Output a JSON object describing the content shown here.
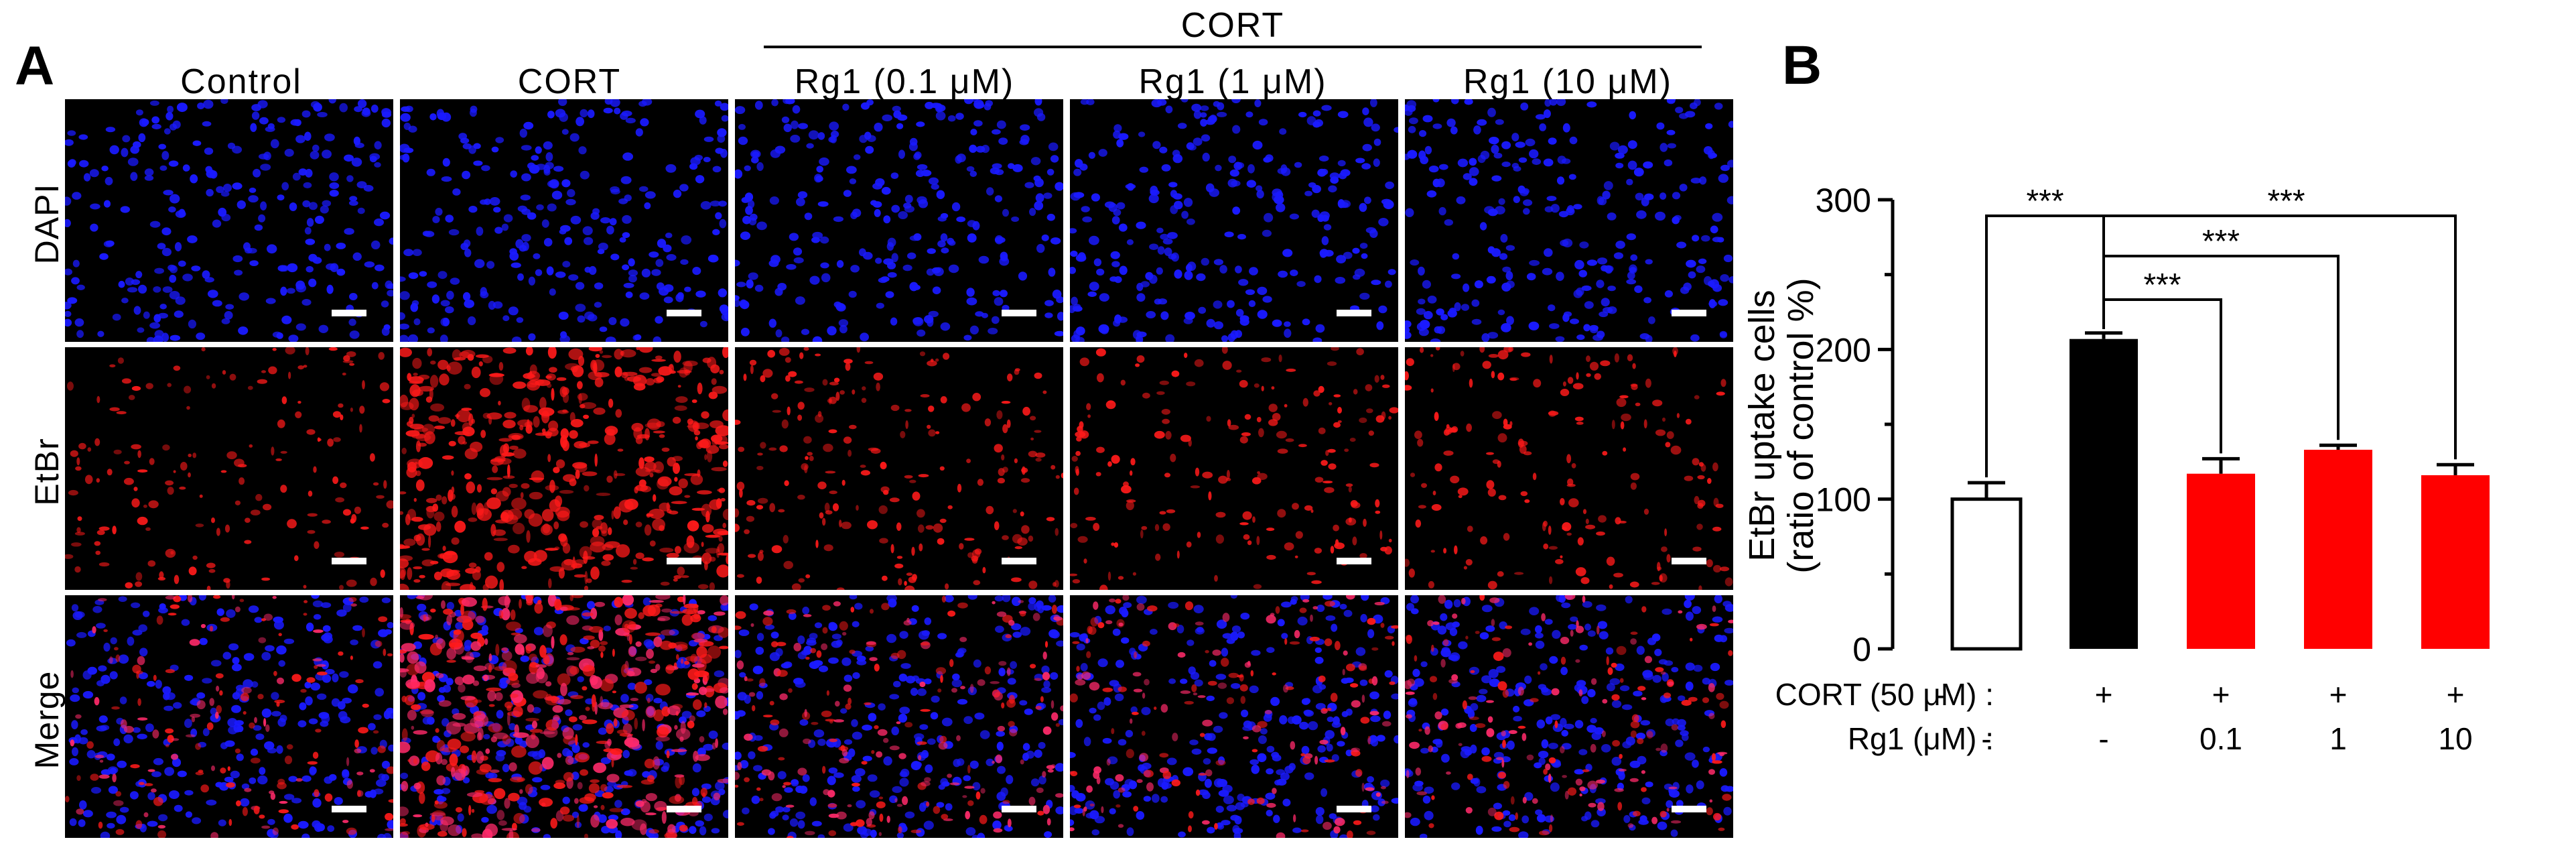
{
  "panelA": {
    "letter": "A",
    "cort_group_label": "CORT",
    "columns": [
      "Control",
      "CORT",
      "Rg1 (0.1 μM)",
      "Rg1 (1 μM)",
      "Rg1 (10 μM)"
    ],
    "rows": [
      "DAPI",
      "EtBr",
      "Merge"
    ],
    "colors": {
      "dapi": "#1a1aff",
      "etbr": "#ff1a1a",
      "background": "#000000",
      "scalebar": "#ffffff"
    }
  },
  "panelB": {
    "letter": "B",
    "condition_labels": {
      "cort": "CORT (50 μM) :",
      "rg1": "Rg1 (μM) :"
    },
    "cort_signs": [
      "-",
      "+",
      "+",
      "+",
      "+"
    ],
    "rg1_values": [
      "-",
      "-",
      "0.1",
      "1",
      "10"
    ],
    "significance": [
      "***",
      "***",
      "***",
      "***"
    ]
  },
  "chart_data": {
    "type": "bar",
    "categories": [
      "Control",
      "CORT",
      "CORT + Rg1 0.1",
      "CORT + Rg1 1",
      "CORT + Rg1 10"
    ],
    "values": [
      100,
      207,
      117,
      133,
      116
    ],
    "errors": [
      11,
      4,
      10,
      3,
      7
    ],
    "bar_colors": [
      "#ffffff",
      "#000000",
      "#ff0000",
      "#ff0000",
      "#ff0000"
    ],
    "ylabel": "EtBr uptake cells",
    "ylabel2": "(ratio of control %)",
    "ylim": [
      0,
      300
    ],
    "yticks": [
      "0",
      "100",
      "200",
      "300"
    ],
    "comparisons": [
      {
        "from": 0,
        "to": 1,
        "label": "***"
      },
      {
        "from": 1,
        "to": 2,
        "label": "***"
      },
      {
        "from": 1,
        "to": 3,
        "label": "***"
      },
      {
        "from": 1,
        "to": 4,
        "label": "***"
      }
    ]
  }
}
